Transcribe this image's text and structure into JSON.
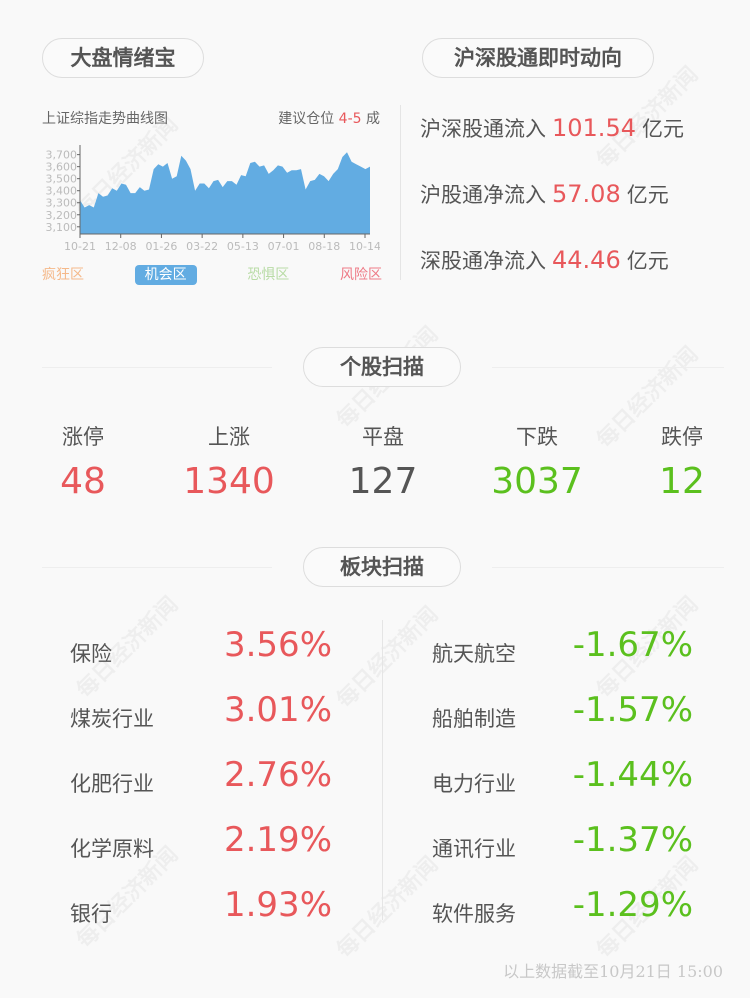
{
  "watermark": "每日经济新闻",
  "sentiment": {
    "title": "大盘情绪宝",
    "chart_label": "上证综指走势曲线图",
    "advice_prefix": "建议仓位",
    "advice_value": "4-5",
    "advice_suffix": "成",
    "zones": [
      {
        "label": "疯狂区",
        "color": "#f5b98a"
      },
      {
        "label": "机会区",
        "color": "#ffffff",
        "active": true
      },
      {
        "label": "恐惧区",
        "color": "#b9dca6"
      },
      {
        "label": "风险区",
        "color": "#ee7a86"
      }
    ]
  },
  "chart_data": {
    "type": "area",
    "color": "#62ace2",
    "yticks": [
      "3,700",
      "3,600",
      "3,500",
      "3,400",
      "3,300",
      "3,200",
      "3,100"
    ],
    "ytick_values": [
      3700,
      3600,
      3500,
      3400,
      3300,
      3200,
      3100
    ],
    "ylim": [
      3040,
      3780
    ],
    "xticks": [
      "10-21",
      "12-08",
      "01-26",
      "03-22",
      "05-13",
      "07-01",
      "08-18",
      "10-14"
    ],
    "values": [
      3320,
      3260,
      3280,
      3260,
      3380,
      3350,
      3360,
      3420,
      3400,
      3460,
      3450,
      3380,
      3380,
      3430,
      3400,
      3410,
      3580,
      3620,
      3600,
      3630,
      3500,
      3520,
      3690,
      3650,
      3580,
      3400,
      3460,
      3460,
      3420,
      3480,
      3490,
      3430,
      3480,
      3480,
      3450,
      3530,
      3520,
      3630,
      3640,
      3600,
      3610,
      3540,
      3570,
      3610,
      3600,
      3550,
      3570,
      3570,
      3580,
      3410,
      3480,
      3490,
      3540,
      3520,
      3480,
      3540,
      3580,
      3680,
      3720,
      3640,
      3620,
      3600,
      3580,
      3600
    ]
  },
  "northbound": {
    "title": "沪深股通即时动向",
    "unit": "亿元",
    "items": [
      {
        "label": "沪深股通流入",
        "value": "101.54"
      },
      {
        "label": "沪股通净流入",
        "value": "57.08"
      },
      {
        "label": "深股通净流入",
        "value": "44.46"
      }
    ]
  },
  "stocks": {
    "title": "个股扫描",
    "items": [
      {
        "label": "涨停",
        "value": "48",
        "color": "red"
      },
      {
        "label": "上涨",
        "value": "1340",
        "color": "red"
      },
      {
        "label": "平盘",
        "value": "127",
        "color": "gray"
      },
      {
        "label": "下跌",
        "value": "3037",
        "color": "green"
      },
      {
        "label": "跌停",
        "value": "12",
        "color": "green"
      }
    ]
  },
  "sectors": {
    "title": "板块扫描",
    "gainers": [
      {
        "name": "保险",
        "pct": "3.56%"
      },
      {
        "name": "煤炭行业",
        "pct": "3.01%"
      },
      {
        "name": "化肥行业",
        "pct": "2.76%"
      },
      {
        "name": "化学原料",
        "pct": "2.19%"
      },
      {
        "name": "银行",
        "pct": "1.93%"
      }
    ],
    "losers": [
      {
        "name": "航天航空",
        "pct": "-1.67%"
      },
      {
        "name": "船舶制造",
        "pct": "-1.57%"
      },
      {
        "name": "电力行业",
        "pct": "-1.44%"
      },
      {
        "name": "通讯行业",
        "pct": "-1.37%"
      },
      {
        "name": "软件服务",
        "pct": "-1.29%"
      }
    ]
  },
  "footer": "以上数据截至10月21日 15:00"
}
